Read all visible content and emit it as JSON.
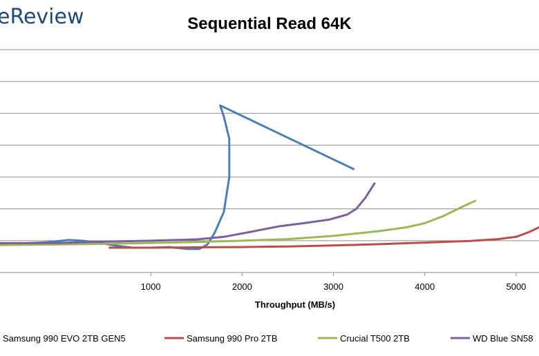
{
  "logo_text": "eReview",
  "chart_data": {
    "type": "line",
    "title": "Sequential Read 64K",
    "xlabel": "Throughput  (MB/s)",
    "ylabel": "",
    "xlim": [
      -650,
      5250
    ],
    "ylim": [
      0,
      7
    ],
    "x_ticks": [
      1000,
      2000,
      3000,
      4000,
      5000
    ],
    "grid": true,
    "legend_position": "bottom",
    "series": [
      {
        "name": "Samsung 990 EVO 2TB GEN5",
        "color": "#4a7ebb",
        "points": [
          [
            -650,
            0.92
          ],
          [
            -350,
            0.92
          ],
          [
            -150,
            0.95
          ],
          [
            100,
            1.02
          ],
          [
            250,
            1.0
          ],
          [
            400,
            0.95
          ],
          [
            600,
            0.85
          ],
          [
            800,
            0.78
          ],
          [
            1000,
            0.78
          ],
          [
            1200,
            0.8
          ],
          [
            1400,
            0.74
          ],
          [
            1530,
            0.74
          ],
          [
            1620,
            0.88
          ],
          [
            1700,
            1.25
          ],
          [
            1800,
            1.9
          ],
          [
            1860,
            3.0
          ],
          [
            1860,
            4.2
          ],
          [
            1800,
            4.9
          ],
          [
            1760,
            5.25
          ],
          [
            3220,
            3.25
          ]
        ]
      },
      {
        "name": "Samsung 990 Pro 2TB",
        "color": "#be4b48",
        "points": [
          [
            550,
            0.78
          ],
          [
            1000,
            0.78
          ],
          [
            1500,
            0.79
          ],
          [
            2000,
            0.8
          ],
          [
            2500,
            0.82
          ],
          [
            3000,
            0.85
          ],
          [
            3500,
            0.89
          ],
          [
            4000,
            0.94
          ],
          [
            4500,
            0.99
          ],
          [
            4800,
            1.05
          ],
          [
            5000,
            1.12
          ],
          [
            5150,
            1.28
          ],
          [
            5250,
            1.42
          ]
        ]
      },
      {
        "name": "Crucial T500 2TB",
        "color": "#98b954",
        "points": [
          [
            -650,
            0.86
          ],
          [
            500,
            0.9
          ],
          [
            1000,
            0.93
          ],
          [
            1500,
            0.96
          ],
          [
            2000,
            1.0
          ],
          [
            2500,
            1.05
          ],
          [
            3000,
            1.15
          ],
          [
            3500,
            1.3
          ],
          [
            3800,
            1.42
          ],
          [
            4000,
            1.55
          ],
          [
            4200,
            1.77
          ],
          [
            4400,
            2.05
          ],
          [
            4550,
            2.25
          ]
        ]
      },
      {
        "name": "WD Blue SN58",
        "color": "#7d5fa0",
        "points": [
          [
            -650,
            0.92
          ],
          [
            0,
            0.93
          ],
          [
            500,
            0.97
          ],
          [
            1000,
            1.0
          ],
          [
            1500,
            1.04
          ],
          [
            1800,
            1.12
          ],
          [
            2100,
            1.28
          ],
          [
            2400,
            1.45
          ],
          [
            2700,
            1.56
          ],
          [
            2950,
            1.66
          ],
          [
            3150,
            1.82
          ],
          [
            3250,
            2.0
          ],
          [
            3350,
            2.35
          ],
          [
            3450,
            2.8
          ]
        ]
      }
    ]
  }
}
